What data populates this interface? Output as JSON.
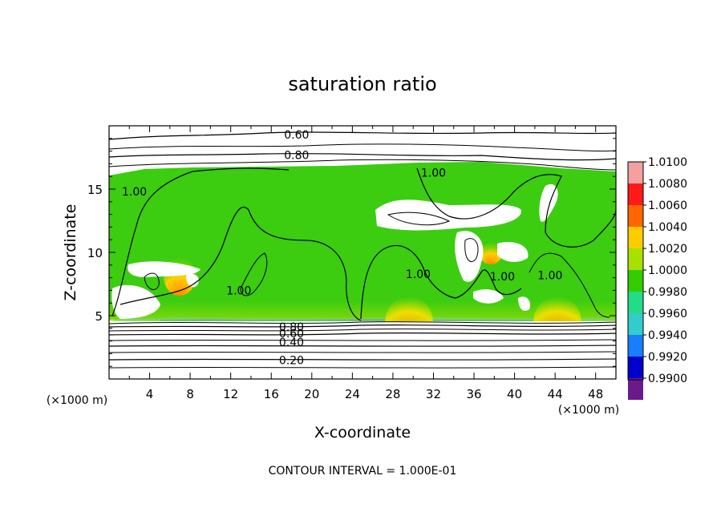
{
  "chart_data": {
    "type": "heatmap",
    "title": "saturation ratio",
    "xlabel": "X-coordinate",
    "ylabel": "Z-coordinate",
    "x_unit": "(×1000 m)",
    "z_unit": "(×1000 m)",
    "xlim": [
      0,
      50
    ],
    "ylim": [
      0,
      20
    ],
    "x_ticks": [
      4,
      8,
      12,
      16,
      20,
      24,
      28,
      32,
      36,
      40,
      44,
      48
    ],
    "y_ticks": [
      5,
      10,
      15
    ],
    "footer": "CONTOUR INTERVAL = 1.000E-01",
    "colorbar": {
      "labels": [
        "1.0100",
        "1.0080",
        "1.0060",
        "1.0040",
        "1.0020",
        "1.0000",
        "0.9980",
        "0.9960",
        "0.9940",
        "0.9920",
        "0.9900"
      ],
      "colors": [
        "#f2a0a0",
        "#ff1a1a",
        "#ff6600",
        "#ffcc00",
        "#a8e000",
        "#33cc00",
        "#22dd88",
        "#33cccc",
        "#1a7cff",
        "#0000cc",
        "#6a1a8a"
      ]
    },
    "contour_labels": [
      {
        "text": "0.60",
        "x": 18.5,
        "z": 19.3
      },
      {
        "text": "0.80",
        "x": 18.5,
        "z": 17.7
      },
      {
        "text": "1.00",
        "x": 32,
        "z": 16.3
      },
      {
        "text": "1.00",
        "x": 2.5,
        "z": 14.8
      },
      {
        "text": "1.00",
        "x": 12.8,
        "z": 7.0
      },
      {
        "text": "1.00",
        "x": 30.5,
        "z": 8.3
      },
      {
        "text": "1.00",
        "x": 38.8,
        "z": 8.1
      },
      {
        "text": "1.00",
        "x": 43.5,
        "z": 8.2
      },
      {
        "text": "0.80",
        "x": 18.0,
        "z": 4.1
      },
      {
        "text": "0.60",
        "x": 18.0,
        "z": 3.6
      },
      {
        "text": "0.40",
        "x": 18.0,
        "z": 2.9
      },
      {
        "text": "0.20",
        "x": 18.0,
        "z": 1.5
      }
    ]
  }
}
